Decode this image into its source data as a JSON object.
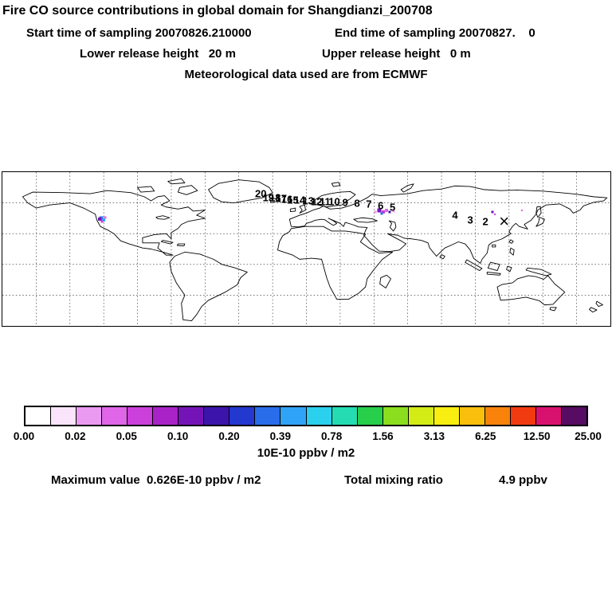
{
  "header": {
    "title": "Fire CO source contributions in global domain for Shangdianzi_200708",
    "start_time": "Start time of sampling 20070826.210000",
    "end_time": "End time of sampling 20070827.    0",
    "lower_release": "Lower release height   20 m",
    "upper_release": "Upper release height   0 m",
    "met_data": "Meteorological data used are from ECMWF"
  },
  "colorbar": {
    "labels": [
      "0.00",
      "0.02",
      "0.05",
      "0.10",
      "0.20",
      "0.39",
      "0.78",
      "1.56",
      "3.13",
      "6.25",
      "12.50",
      "25.00"
    ],
    "colors": [
      "#ffffff",
      "#f9e4fb",
      "#ea9bf1",
      "#df66e7",
      "#cb3fda",
      "#a922c8",
      "#7514b6",
      "#3d14ab",
      "#2338cf",
      "#2a6deb",
      "#2fa4f6",
      "#2bd0ee",
      "#25dcb2",
      "#27cf4a",
      "#8ade1e",
      "#d3ec16",
      "#f8ee10",
      "#f9bf0d",
      "#f8820a",
      "#f23a10",
      "#d9116e",
      "#570b62"
    ],
    "units": "10E-10 ppbv / m2"
  },
  "footer": {
    "max_value": "Maximum value  0.626E-10 ppbv / m2",
    "total_label": "Total mixing ratio",
    "total_value": "4.9 ppbv"
  },
  "chart_data": {
    "type": "heatmap",
    "title": "Fire CO source contributions in global domain for Shangdianzi_200708",
    "projection": "equirectangular world map",
    "lon_range": [
      -180,
      180
    ],
    "lat_range": [
      -60,
      90
    ],
    "grid": true,
    "grid_spacing_deg": {
      "lon": 20,
      "lat": 30
    },
    "colorbar_levels": [
      0.0,
      0.02,
      0.05,
      0.1,
      0.2,
      0.39,
      0.78,
      1.56,
      3.13,
      6.25,
      12.5,
      25.0
    ],
    "colorbar_units": "10E-10 ppbv / m2",
    "legend_position": "bottom",
    "maximum_value": "0.626E-10 ppbv / m2",
    "total_mixing_ratio": "4.9 ppbv",
    "receptor_station": {
      "name": "Shangdianzi",
      "marker": "×",
      "lon": 117.1,
      "lat": 40.65
    },
    "backward_trajectory": [
      {
        "day": "20",
        "lon": -27.0,
        "lat": 69.0
      },
      {
        "day": "19",
        "lon": -22.5,
        "lat": 65.5
      },
      {
        "day": "18",
        "lon": -18.5,
        "lat": 65.0
      },
      {
        "day": "17",
        "lon": -15.0,
        "lat": 64.0
      },
      {
        "day": "16",
        "lon": -11.5,
        "lat": 63.5
      },
      {
        "day": "15",
        "lon": -8.0,
        "lat": 63.0
      },
      {
        "day": "14",
        "lon": -4.0,
        "lat": 62.5
      },
      {
        "day": "13",
        "lon": 1.0,
        "lat": 62.0
      },
      {
        "day": "12",
        "lon": 6.0,
        "lat": 61.5
      },
      {
        "day": "11",
        "lon": 11.0,
        "lat": 61.0
      },
      {
        "day": "10",
        "lon": 16.5,
        "lat": 61.0
      },
      {
        "day": "9",
        "lon": 23.0,
        "lat": 60.5
      },
      {
        "day": "8",
        "lon": 30.0,
        "lat": 60.0
      },
      {
        "day": "7",
        "lon": 37.0,
        "lat": 59.0
      },
      {
        "day": "6",
        "lon": 44.0,
        "lat": 57.5
      },
      {
        "day": "5",
        "lon": 51.0,
        "lat": 56.0
      },
      {
        "day": "4",
        "lon": 88.0,
        "lat": 48.0
      },
      {
        "day": "3",
        "lon": 97.0,
        "lat": 43.5
      },
      {
        "day": "2",
        "lon": 106.0,
        "lat": 42.0
      }
    ],
    "source_hotspots": [
      {
        "lon": -121.5,
        "lat": 45.0,
        "color": "#2a6deb",
        "size": 5
      },
      {
        "lon": -120.0,
        "lat": 43.5,
        "color": "#2fa4f6",
        "size": 4
      },
      {
        "lon": -122.5,
        "lat": 43.8,
        "color": "#7514b6",
        "size": 4
      },
      {
        "lon": -119.0,
        "lat": 45.8,
        "color": "#df66e7",
        "size": 3
      },
      {
        "lon": -121.0,
        "lat": 41.8,
        "color": "#cb3fda",
        "size": 3
      },
      {
        "lon": 43.0,
        "lat": 52.5,
        "color": "#7514b6",
        "size": 5
      },
      {
        "lon": 45.5,
        "lat": 51.5,
        "color": "#cb3fda",
        "size": 4
      },
      {
        "lon": 47.5,
        "lat": 53.0,
        "color": "#df66e7",
        "size": 4
      },
      {
        "lon": 49.5,
        "lat": 51.0,
        "color": "#3d14ab",
        "size": 3
      },
      {
        "lon": 44.5,
        "lat": 49.8,
        "color": "#2a6deb",
        "size": 3
      },
      {
        "lon": 51.5,
        "lat": 52.3,
        "color": "#ea9bf1",
        "size": 3
      },
      {
        "lon": 41.0,
        "lat": 50.8,
        "color": "#ea9bf1",
        "size": 3
      },
      {
        "lon": 110.0,
        "lat": 51.0,
        "color": "#7514b6",
        "size": 3
      },
      {
        "lon": 111.5,
        "lat": 48.5,
        "color": "#cb3fda",
        "size": 2
      },
      {
        "lon": 127.5,
        "lat": 53.0,
        "color": "#df66e7",
        "size": 2
      }
    ]
  }
}
